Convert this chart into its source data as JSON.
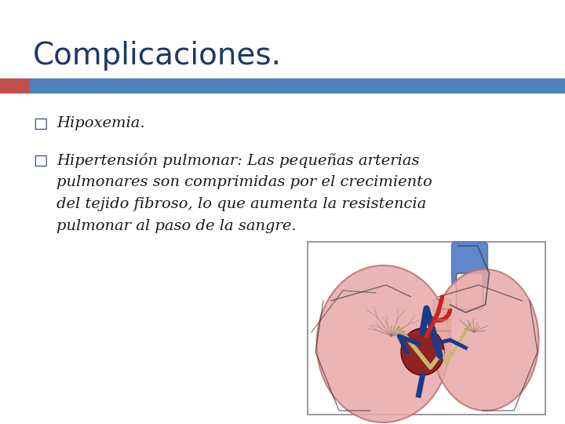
{
  "title": "Complicaciones.",
  "title_color": "#1F3864",
  "title_fontsize": 28,
  "bar_left_color": "#C0504D",
  "bar_right_color": "#4F81BD",
  "bullet_char": "□",
  "bullet_color": "#1F3864",
  "bullet_fontsize": 14,
  "text_color": "#1a1a1a",
  "text_fontsize": 14,
  "bullet1": "Hipoxemia.",
  "bullet2_line1": "Hipertensión pulmonar: Las pequeñas arterias",
  "bullet2_line2": "pulmonares son comprimidas por el crecimiento",
  "bullet2_line3": "del tejido fibroso, lo que aumenta la resistencia",
  "bullet2_line4": "pulmonar al paso de la sangre.",
  "bg_color": "#FFFFFF"
}
